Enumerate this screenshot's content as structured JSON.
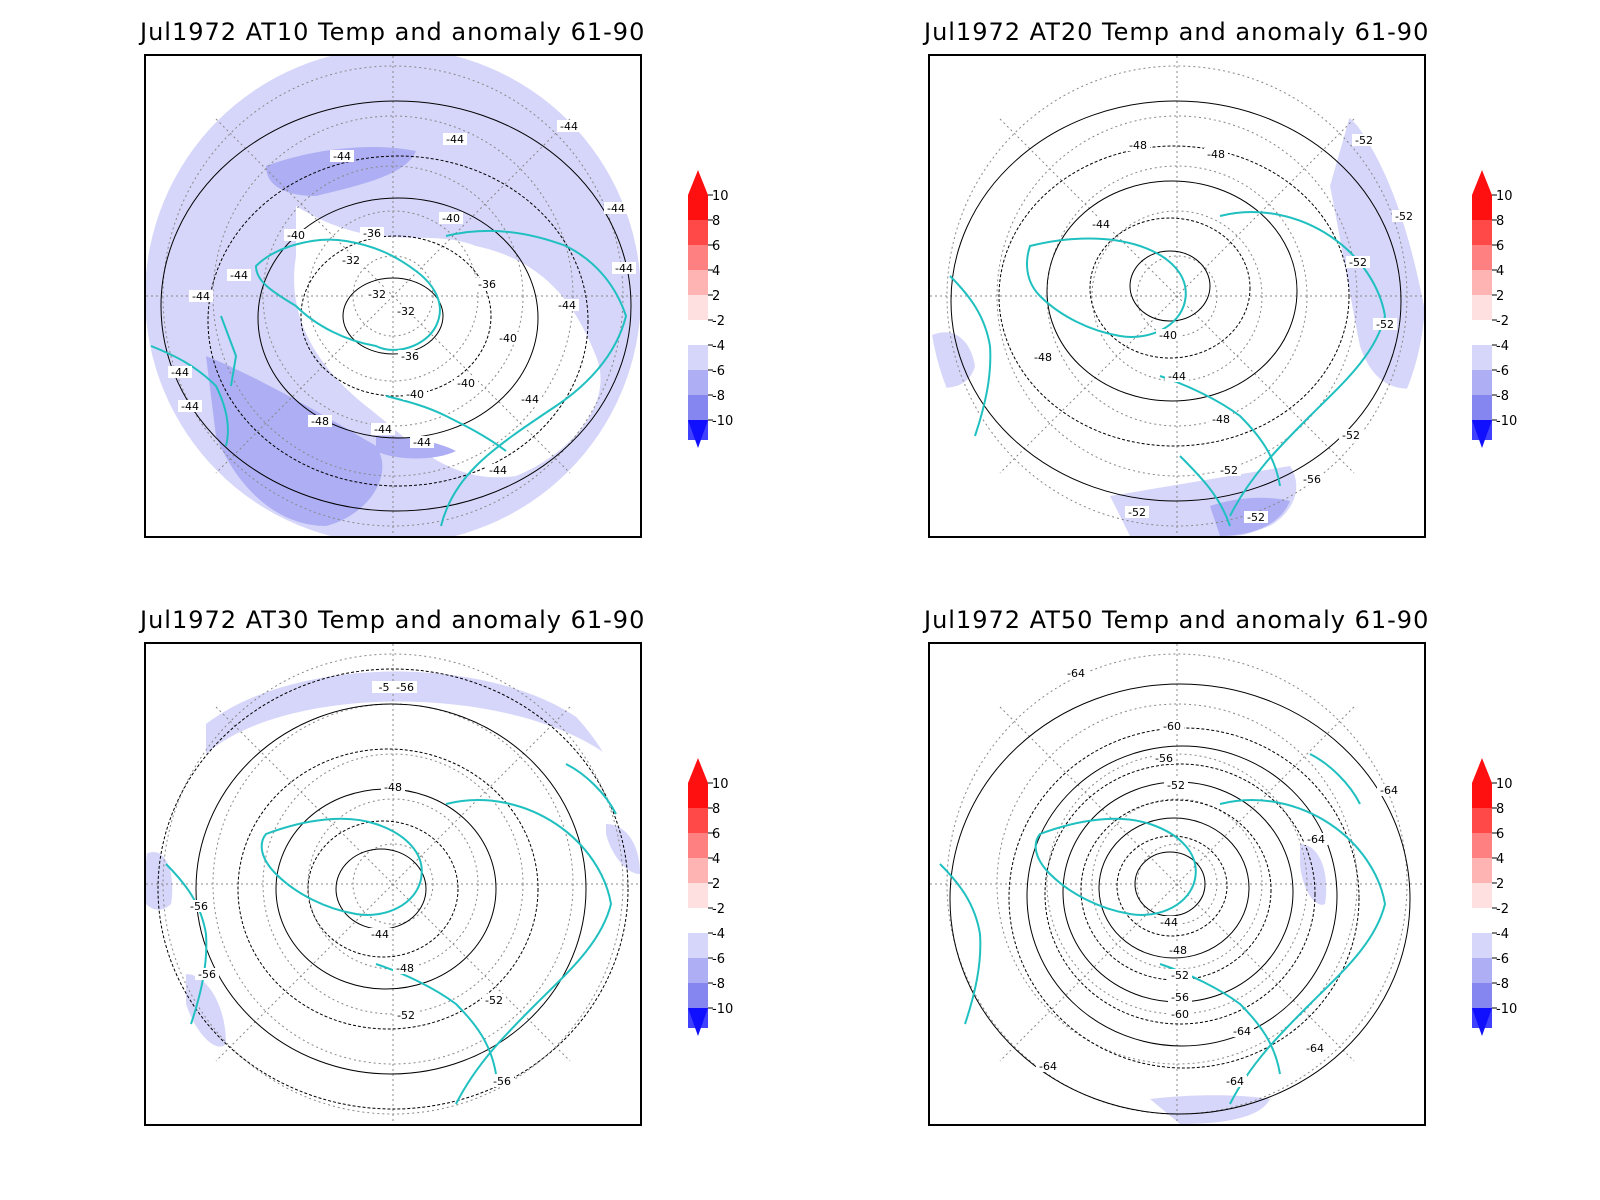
{
  "panels": [
    {
      "title": "Jul1972 AT10 Temp and anomaly 61-90"
    },
    {
      "title": "Jul1972 AT20 Temp and anomaly 61-90"
    },
    {
      "title": "Jul1972 AT30 Temp and anomaly 61-90"
    },
    {
      "title": "Jul1972 AT50 Temp and anomaly 61-90"
    }
  ],
  "colorbar": {
    "labels": [
      "10",
      "8",
      "6",
      "4",
      "2",
      "-2",
      "-4",
      "-6",
      "-8",
      "-10"
    ],
    "colors": [
      "#ff1010",
      "#ff4848",
      "#ff8080",
      "#ffb4b4",
      "#ffe0e0",
      "#ffffff",
      "#d6d6fa",
      "#aeaef4",
      "#8686f0",
      "#4040ff",
      "#1010ff"
    ]
  },
  "contour_labels": {
    "at10": [
      "-44",
      "-44",
      "-44",
      "-40",
      "-40",
      "-36",
      "-32",
      "-32",
      "-32",
      "-36",
      "-36",
      "-40",
      "-40",
      "-40",
      "-44",
      "-44",
      "-44",
      "-44",
      "-48",
      "-44",
      "-44",
      "-44",
      "-44",
      "-44",
      "-44",
      "-44"
    ],
    "at20": [
      "-48",
      "-48",
      "-44",
      "-40",
      "-44",
      "-48",
      "-48",
      "-52",
      "-52",
      "-52",
      "-52",
      "-52",
      "-52",
      "-52",
      "-56",
      "-52"
    ],
    "at30": [
      "-5",
      "-56",
      "-48",
      "-44",
      "-48",
      "-52",
      "-52",
      "-56",
      "-56",
      "-56"
    ],
    "at50": [
      "-64",
      "-60",
      "-56",
      "-52",
      "-44",
      "-48",
      "-52",
      "-56",
      "-60",
      "-64",
      "-64",
      "-64",
      "-64",
      "-64",
      "-64"
    ]
  },
  "colors": {
    "coast": "#20c0c0",
    "contour": "#000000",
    "grid": "#888888"
  }
}
